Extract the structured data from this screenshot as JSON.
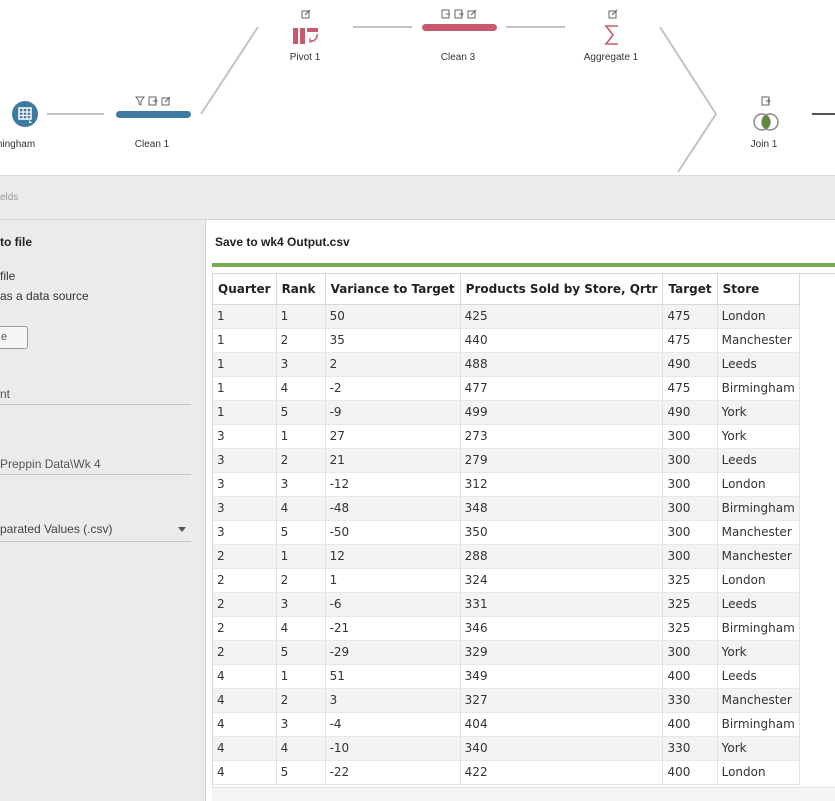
{
  "flow": {
    "nodes": [
      {
        "id": "birmingham",
        "label": "ningham",
        "type": "input"
      },
      {
        "id": "clean1",
        "label": "Clean 1",
        "type": "clean"
      },
      {
        "id": "pivot1",
        "label": "Pivot 1",
        "type": "pivot"
      },
      {
        "id": "clean3",
        "label": "Clean 3",
        "type": "clean"
      },
      {
        "id": "aggregate1",
        "label": "Aggregate 1",
        "type": "aggregate"
      },
      {
        "id": "join1",
        "label": "Join 1",
        "type": "join"
      }
    ],
    "colors": {
      "blue": "#3f7ba1",
      "pink": "#c9596e",
      "green": "#5b8a3c",
      "line": "#c2c2c2"
    }
  },
  "strip": {
    "fields_text": "elds"
  },
  "left_panel": {
    "heading": "to file",
    "option_file": "file",
    "option_datasource": "as a data source",
    "button_label": "e",
    "name_field": "nt",
    "location_field": "Preppin Data\\Wk 4",
    "output_type": "parated Values (.csv)"
  },
  "preview": {
    "title": "Save to wk4 Output.csv",
    "accent": "#74ad52",
    "columns": [
      "Quarter",
      "Rank",
      "Variance to Target",
      "Products Sold by Store, Qrtr",
      "Target",
      "Store"
    ],
    "rows": [
      [
        "1",
        "1",
        "50",
        "425",
        "475",
        "London"
      ],
      [
        "1",
        "2",
        "35",
        "440",
        "475",
        "Manchester"
      ],
      [
        "1",
        "3",
        "2",
        "488",
        "490",
        "Leeds"
      ],
      [
        "1",
        "4",
        "-2",
        "477",
        "475",
        "Birmingham"
      ],
      [
        "1",
        "5",
        "-9",
        "499",
        "490",
        "York"
      ],
      [
        "3",
        "1",
        "27",
        "273",
        "300",
        "York"
      ],
      [
        "3",
        "2",
        "21",
        "279",
        "300",
        "Leeds"
      ],
      [
        "3",
        "3",
        "-12",
        "312",
        "300",
        "London"
      ],
      [
        "3",
        "4",
        "-48",
        "348",
        "300",
        "Birmingham"
      ],
      [
        "3",
        "5",
        "-50",
        "350",
        "300",
        "Manchester"
      ],
      [
        "2",
        "1",
        "12",
        "288",
        "300",
        "Manchester"
      ],
      [
        "2",
        "2",
        "1",
        "324",
        "325",
        "London"
      ],
      [
        "2",
        "3",
        "-6",
        "331",
        "325",
        "Leeds"
      ],
      [
        "2",
        "4",
        "-21",
        "346",
        "325",
        "Birmingham"
      ],
      [
        "2",
        "5",
        "-29",
        "329",
        "300",
        "York"
      ],
      [
        "4",
        "1",
        "51",
        "349",
        "400",
        "Leeds"
      ],
      [
        "4",
        "2",
        "3",
        "327",
        "330",
        "Manchester"
      ],
      [
        "4",
        "3",
        "-4",
        "404",
        "400",
        "Birmingham"
      ],
      [
        "4",
        "4",
        "-10",
        "340",
        "330",
        "York"
      ],
      [
        "4",
        "5",
        "-22",
        "422",
        "400",
        "London"
      ]
    ]
  }
}
